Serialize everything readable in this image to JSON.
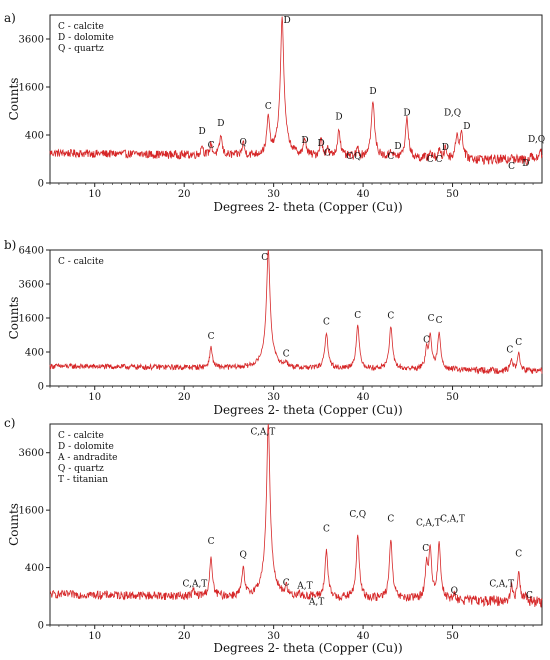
{
  "chart_data": [
    {
      "type": "line",
      "panel_label": "a)",
      "xlabel": "Degrees 2- theta (Copper (Cu))",
      "ylabel": "Counts",
      "xlim": [
        5,
        60
      ],
      "ylim": [
        0,
        4900
      ],
      "x_ticks": [
        10,
        20,
        30,
        40,
        50
      ],
      "y_ticks": [
        0,
        400,
        1600,
        3600
      ],
      "y_scale": "sqrt",
      "grid": false,
      "legend_position": "top-left",
      "legend": [
        "C - calcite",
        "D - dolomite",
        "Q - quartz"
      ],
      "series": [
        {
          "color": "#d62728",
          "background": 150,
          "peaks": [
            {
              "x": 22.0,
              "y": 120,
              "w": 0.12
            },
            {
              "x": 23.0,
              "y": 140,
              "w": 0.12
            },
            {
              "x": 24.1,
              "y": 260,
              "w": 0.14
            },
            {
              "x": 26.6,
              "y": 160,
              "w": 0.12
            },
            {
              "x": 29.4,
              "y": 640,
              "w": 0.15
            },
            {
              "x": 30.95,
              "y": 4700,
              "w": 0.17
            },
            {
              "x": 33.5,
              "y": 210,
              "w": 0.14
            },
            {
              "x": 35.3,
              "y": 220,
              "w": 0.14
            },
            {
              "x": 36.0,
              "y": 90,
              "w": 0.12
            },
            {
              "x": 37.3,
              "y": 390,
              "w": 0.15
            },
            {
              "x": 39.4,
              "y": 100,
              "w": 0.12
            },
            {
              "x": 41.1,
              "y": 1050,
              "w": 0.17
            },
            {
              "x": 43.1,
              "y": 80,
              "w": 0.12
            },
            {
              "x": 44.9,
              "y": 630,
              "w": 0.16
            },
            {
              "x": 47.5,
              "y": 70,
              "w": 0.12
            },
            {
              "x": 48.5,
              "y": 90,
              "w": 0.12
            },
            {
              "x": 49.2,
              "y": 120,
              "w": 0.12
            },
            {
              "x": 50.5,
              "y": 300,
              "w": 0.16
            },
            {
              "x": 51.0,
              "y": 350,
              "w": 0.16
            },
            {
              "x": 56.6,
              "y": 60,
              "w": 0.12
            },
            {
              "x": 58.8,
              "y": 70,
              "w": 0.12
            },
            {
              "x": 59.8,
              "y": 120,
              "w": 0.14
            }
          ]
        }
      ],
      "annotations": [
        {
          "text": "D",
          "x": 22.0,
          "y": 420
        },
        {
          "text": "C",
          "x": 23.0,
          "y": 210
        },
        {
          "text": "D",
          "x": 24.1,
          "y": 560
        },
        {
          "text": "Q",
          "x": 26.6,
          "y": 250
        },
        {
          "text": "C",
          "x": 29.4,
          "y": 950
        },
        {
          "text": "D",
          "x": 31.5,
          "y": 4950
        },
        {
          "text": "D",
          "x": 33.5,
          "y": 280
        },
        {
          "text": "D",
          "x": 35.3,
          "y": 240
        },
        {
          "text": "C",
          "x": 36.0,
          "y": 130
        },
        {
          "text": "D",
          "x": 37.3,
          "y": 700
        },
        {
          "text": "C",
          "x": 38.5,
          "y": 100
        },
        {
          "text": "Q",
          "x": 39.4,
          "y": 100
        },
        {
          "text": "D",
          "x": 41.1,
          "y": 1380
        },
        {
          "text": "C",
          "x": 43.1,
          "y": 100
        },
        {
          "text": "D",
          "x": 43.9,
          "y": 200
        },
        {
          "text": "D",
          "x": 44.9,
          "y": 790
        },
        {
          "text": "C",
          "x": 47.5,
          "y": 75
        },
        {
          "text": "C",
          "x": 48.5,
          "y": 75
        },
        {
          "text": "D",
          "x": 49.2,
          "y": 190
        },
        {
          "text": "D,Q",
          "x": 50.0,
          "y": 790
        },
        {
          "text": "D",
          "x": 51.6,
          "y": 510
        },
        {
          "text": "C",
          "x": 56.6,
          "y": 35
        },
        {
          "text": "D",
          "x": 58.2,
          "y": 50
        },
        {
          "text": "D,Q",
          "x": 59.4,
          "y": 290
        }
      ]
    },
    {
      "type": "line",
      "panel_label": "b)",
      "xlabel": "Degrees 2- theta (Copper (Cu))",
      "ylabel": "Counts",
      "xlim": [
        5,
        60
      ],
      "ylim": [
        0,
        6400
      ],
      "x_ticks": [
        10,
        20,
        30,
        40,
        50
      ],
      "y_ticks": [
        0,
        400,
        1600,
        3600,
        6400
      ],
      "y_scale": "sqrt",
      "grid": false,
      "legend_position": "top-left",
      "legend": [
        "C - calcite"
      ],
      "series": [
        {
          "color": "#d62728",
          "background": 130,
          "peaks": [
            {
              "x": 23.0,
              "y": 420,
              "w": 0.14
            },
            {
              "x": 29.4,
              "y": 6400,
              "w": 0.17
            },
            {
              "x": 31.4,
              "y": 90,
              "w": 0.12
            },
            {
              "x": 35.9,
              "y": 880,
              "w": 0.16
            },
            {
              "x": 39.4,
              "y": 1170,
              "w": 0.16
            },
            {
              "x": 43.1,
              "y": 1130,
              "w": 0.16
            },
            {
              "x": 47.1,
              "y": 380,
              "w": 0.14
            },
            {
              "x": 47.5,
              "y": 840,
              "w": 0.15
            },
            {
              "x": 48.5,
              "y": 880,
              "w": 0.16
            },
            {
              "x": 56.6,
              "y": 170,
              "w": 0.14
            },
            {
              "x": 57.4,
              "y": 300,
              "w": 0.14
            }
          ]
        }
      ],
      "annotations": [
        {
          "text": "C",
          "x": 23.0,
          "y": 770
        },
        {
          "text": "C",
          "x": 29.0,
          "y": 5500
        },
        {
          "text": "C",
          "x": 31.4,
          "y": 300
        },
        {
          "text": "C",
          "x": 35.9,
          "y": 1300
        },
        {
          "text": "C",
          "x": 39.4,
          "y": 1600
        },
        {
          "text": "C",
          "x": 43.1,
          "y": 1570
        },
        {
          "text": "C",
          "x": 47.1,
          "y": 660
        },
        {
          "text": "C",
          "x": 47.6,
          "y": 1470
        },
        {
          "text": "C",
          "x": 48.5,
          "y": 1370
        },
        {
          "text": "C",
          "x": 56.4,
          "y": 385
        },
        {
          "text": "C",
          "x": 57.4,
          "y": 580
        }
      ]
    },
    {
      "type": "line",
      "panel_label": "c)",
      "xlabel": "Degrees 2- theta (Copper (Cu))",
      "ylabel": "Counts",
      "xlim": [
        5,
        60
      ],
      "ylim": [
        0,
        4900
      ],
      "x_ticks": [
        10,
        20,
        30,
        40,
        50
      ],
      "y_ticks": [
        0,
        400,
        1600,
        3600
      ],
      "y_scale": "sqrt",
      "grid": false,
      "legend_position": "top-left",
      "legend": [
        "C - calcite",
        "D - dolomite",
        "A - andradite",
        "Q - quartz",
        "T - titanian"
      ],
      "series": [
        {
          "color": "#d62728",
          "background": 110,
          "peaks": [
            {
              "x": 21.0,
              "y": 50,
              "w": 0.12
            },
            {
              "x": 23.0,
              "y": 440,
              "w": 0.15
            },
            {
              "x": 26.6,
              "y": 290,
              "w": 0.15
            },
            {
              "x": 29.4,
              "y": 4900,
              "w": 0.17
            },
            {
              "x": 31.4,
              "y": 80,
              "w": 0.12
            },
            {
              "x": 32.8,
              "y": 40,
              "w": 0.12
            },
            {
              "x": 34.2,
              "y": 20,
              "w": 0.12
            },
            {
              "x": 35.9,
              "y": 600,
              "w": 0.15
            },
            {
              "x": 39.4,
              "y": 910,
              "w": 0.15
            },
            {
              "x": 43.1,
              "y": 820,
              "w": 0.15
            },
            {
              "x": 47.1,
              "y": 380,
              "w": 0.14
            },
            {
              "x": 47.5,
              "y": 650,
              "w": 0.15
            },
            {
              "x": 48.5,
              "y": 760,
              "w": 0.15
            },
            {
              "x": 50.2,
              "y": 30,
              "w": 0.12
            },
            {
              "x": 56.6,
              "y": 120,
              "w": 0.12
            },
            {
              "x": 57.4,
              "y": 290,
              "w": 0.14
            },
            {
              "x": 58.1,
              "y": 40,
              "w": 0.12
            }
          ]
        }
      ],
      "annotations": [
        {
          "text": "C,A,T",
          "x": 21.2,
          "y": 180
        },
        {
          "text": "C",
          "x": 23.0,
          "y": 800
        },
        {
          "text": "Q",
          "x": 26.6,
          "y": 550
        },
        {
          "text": "C,A,T",
          "x": 28.8,
          "y": 4400
        },
        {
          "text": "C",
          "x": 31.4,
          "y": 190
        },
        {
          "text": "A,T",
          "x": 33.5,
          "y": 160
        },
        {
          "text": "A,T",
          "x": 34.8,
          "y": 50
        },
        {
          "text": "C",
          "x": 35.9,
          "y": 1060
        },
        {
          "text": "C,Q",
          "x": 39.4,
          "y": 1420
        },
        {
          "text": "C",
          "x": 43.1,
          "y": 1300
        },
        {
          "text": "C",
          "x": 47.0,
          "y": 660
        },
        {
          "text": "C,A,T",
          "x": 47.3,
          "y": 1200
        },
        {
          "text": "C,A,T",
          "x": 50.0,
          "y": 1300
        },
        {
          "text": "Q",
          "x": 50.2,
          "y": 120
        },
        {
          "text": "C,A,T",
          "x": 55.5,
          "y": 180
        },
        {
          "text": "C",
          "x": 57.4,
          "y": 570
        },
        {
          "text": "C",
          "x": 58.6,
          "y": 90
        }
      ]
    }
  ]
}
